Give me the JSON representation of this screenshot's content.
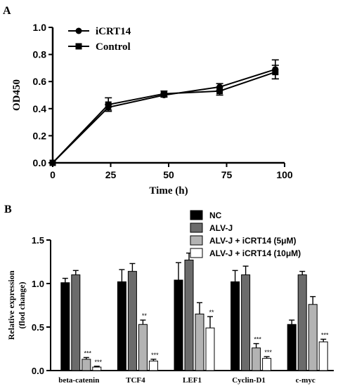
{
  "panels": [
    "A",
    "B"
  ],
  "chart_data": [
    {
      "type": "line",
      "xlabel": "Time (h)",
      "ylabel": "OD450",
      "xlim": [
        0,
        100
      ],
      "ylim": [
        0.0,
        1.0
      ],
      "xticks": [
        "0",
        "25",
        "50",
        "75",
        "100"
      ],
      "yticks": [
        "0.0",
        "0.2",
        "0.4",
        "0.6",
        "0.8",
        "1.0"
      ],
      "legend_position": "top-left",
      "x": [
        0,
        24,
        48,
        72,
        96
      ],
      "series": [
        {
          "name": "iCRT14",
          "marker": "circle",
          "values": [
            0.0,
            0.41,
            0.5,
            0.56,
            0.69
          ],
          "errors": [
            0.0,
            0.02,
            0.015,
            0.025,
            0.07
          ]
        },
        {
          "name": "Control",
          "marker": "square",
          "values": [
            0.0,
            0.43,
            0.51,
            0.53,
            0.67
          ],
          "errors": [
            0.0,
            0.05,
            0.02,
            0.03,
            0.05
          ]
        }
      ]
    },
    {
      "type": "bar",
      "ylabel": "Relative expression (flod change)",
      "ylabel_lines": [
        "Relative expression",
        "(flod change)"
      ],
      "ylim": [
        0.0,
        1.5
      ],
      "yticks": [
        "0.0",
        "0.5",
        "1.0",
        "1.5"
      ],
      "legend_position": "top-right",
      "categories": [
        "beta-catenin",
        "TCF4",
        "LEF1",
        "Cyclin-D1",
        "c-myc"
      ],
      "series": [
        {
          "name": "NC",
          "color": "#000000",
          "values": [
            1.01,
            1.02,
            1.04,
            1.02,
            0.53
          ],
          "errors": [
            0.05,
            0.14,
            0.2,
            0.13,
            0.05
          ],
          "sig": [
            "",
            "",
            "",
            "",
            ""
          ]
        },
        {
          "name": "ALV-J",
          "color": "#6b6b6b",
          "values": [
            1.1,
            1.14,
            1.27,
            1.1,
            1.1
          ],
          "errors": [
            0.05,
            0.09,
            0.08,
            0.1,
            0.04
          ],
          "sig": [
            "",
            "",
            "",
            "",
            ""
          ]
        },
        {
          "name": "ALV-J + iCRT14 (5μM)",
          "color": "#b3b3b3",
          "values": [
            0.13,
            0.53,
            0.65,
            0.26,
            0.76
          ],
          "errors": [
            0.02,
            0.05,
            0.13,
            0.05,
            0.09
          ],
          "sig": [
            "***",
            "**",
            "",
            "***",
            ""
          ]
        },
        {
          "name": "ALV-J + iCRT14 (10μM)",
          "color": "#ffffff",
          "values": [
            0.04,
            0.11,
            0.49,
            0.14,
            0.33
          ],
          "errors": [
            0.01,
            0.02,
            0.13,
            0.02,
            0.03
          ],
          "sig": [
            "***",
            "***",
            "**",
            "***",
            "***"
          ]
        }
      ]
    }
  ]
}
